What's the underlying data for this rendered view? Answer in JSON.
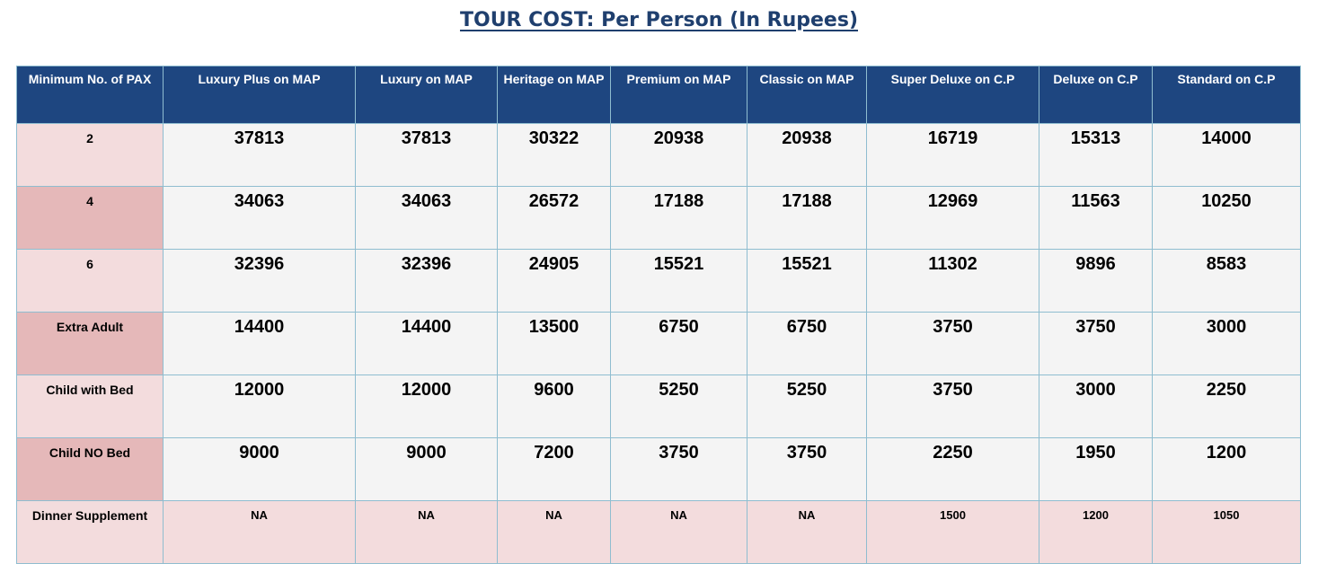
{
  "title": "TOUR COST: Per Person (In Rupees)",
  "table": {
    "headers": [
      "Minimum No. of PAX",
      "Luxury Plus on MAP",
      "Luxury on MAP",
      "Heritage on MAP",
      "Premium on MAP",
      "Classic on MAP",
      "Super Deluxe on C.P",
      "Deluxe on C.P",
      "Standard on C.P"
    ],
    "rows": [
      {
        "label": "2",
        "values": [
          "37813",
          "37813",
          "30322",
          "20938",
          "20938",
          "16719",
          "15313",
          "14000"
        ]
      },
      {
        "label": "4",
        "values": [
          "34063",
          "34063",
          "26572",
          "17188",
          "17188",
          "12969",
          "11563",
          "10250"
        ]
      },
      {
        "label": "6",
        "values": [
          "32396",
          "32396",
          "24905",
          "15521",
          "15521",
          "11302",
          "9896",
          "8583"
        ]
      },
      {
        "label": "Extra Adult",
        "values": [
          "14400",
          "14400",
          "13500",
          "6750",
          "6750",
          "3750",
          "3750",
          "3000"
        ]
      },
      {
        "label": "Child with Bed",
        "values": [
          "12000",
          "12000",
          "9600",
          "5250",
          "5250",
          "3750",
          "3000",
          "2250"
        ]
      },
      {
        "label": "Child NO Bed",
        "values": [
          "9000",
          "9000",
          "7200",
          "3750",
          "3750",
          "2250",
          "1950",
          "1200"
        ]
      },
      {
        "label": "Dinner Supplement",
        "values": [
          "NA",
          "NA",
          "NA",
          "NA",
          "NA",
          "1500",
          "1200",
          "1050"
        ]
      }
    ]
  },
  "colors": {
    "title": "#1f3f6e",
    "header_bg": "#1e4680",
    "grid": "#8fbdd0",
    "label_light": "#f3dcdd",
    "label_dark": "#e5b8b9",
    "cell_bg": "#f4f4f4"
  }
}
